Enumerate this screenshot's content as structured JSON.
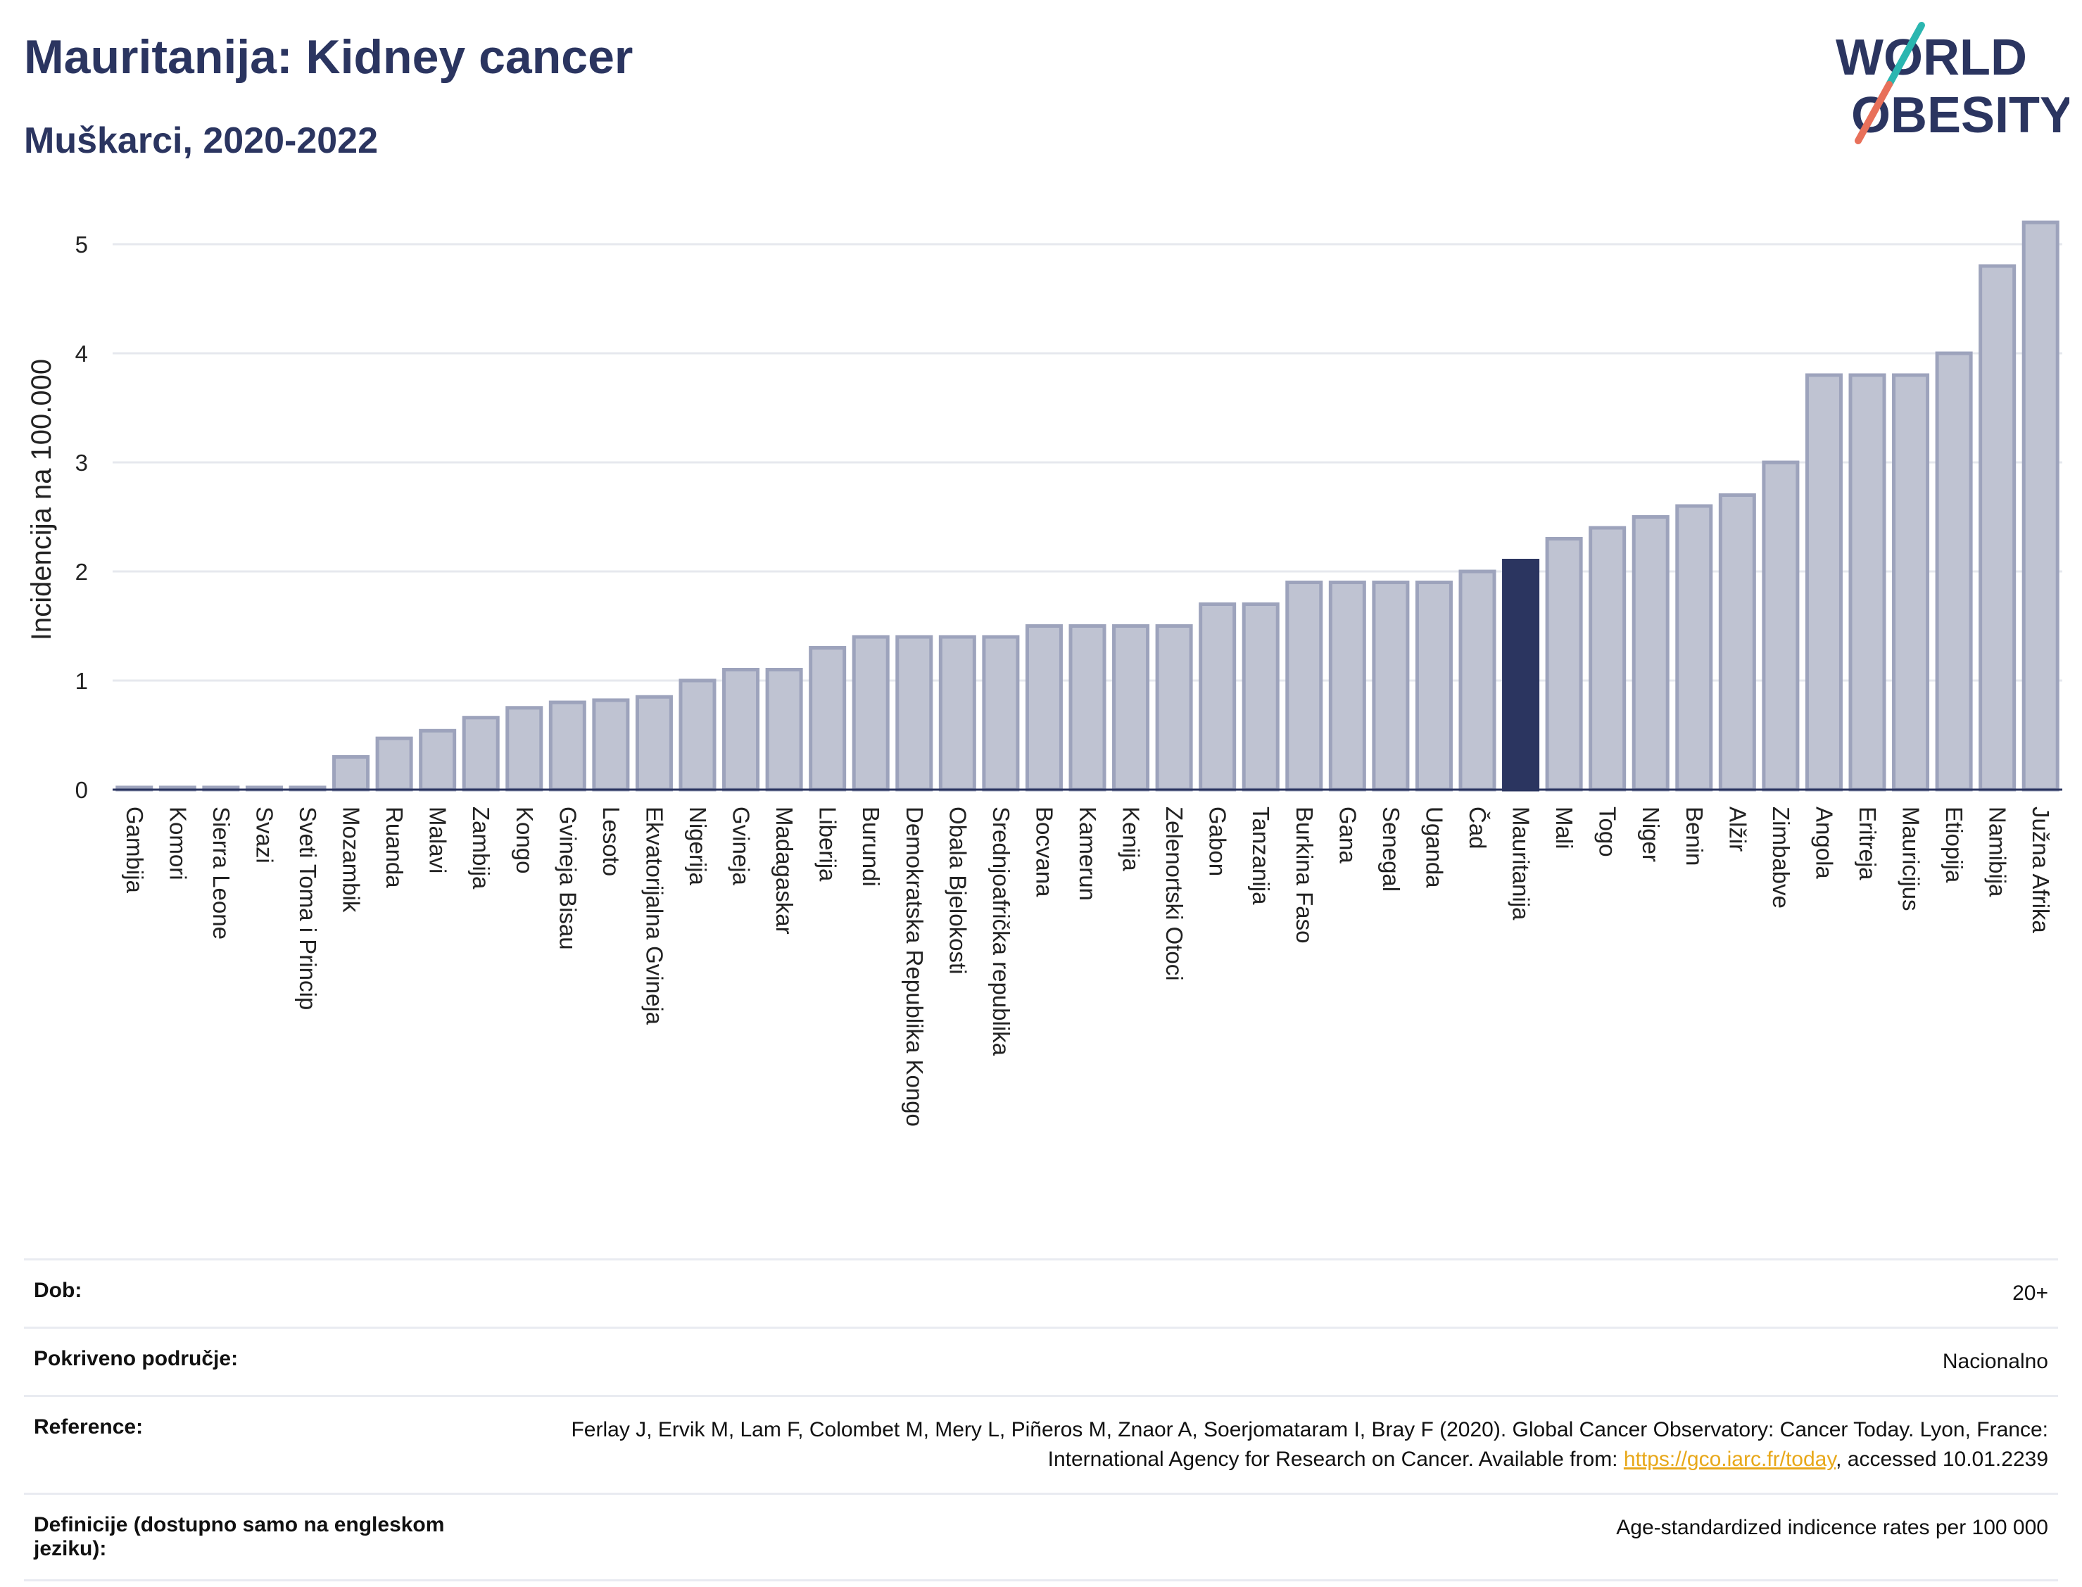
{
  "header": {
    "title": "Mauritanija: Kidney cancer",
    "subtitle": "Muškarci, 2020-2022"
  },
  "logo": {
    "line1": "WORLD",
    "line2": "OBESITY",
    "colors": {
      "text": "#2b3560",
      "slash_top": "#2bb6b0",
      "slash_bottom": "#e8705a"
    }
  },
  "chart_data": {
    "type": "bar",
    "title": "Mauritanija: Kidney cancer",
    "subtitle": "Muškarci, 2020-2022",
    "xlabel": "",
    "ylabel": "Incidencija na 100.000",
    "ylim": [
      0,
      5.4
    ],
    "yticks": [
      0,
      1,
      2,
      3,
      4,
      5
    ],
    "grid": true,
    "highlight": "Mauritanija",
    "colors": {
      "bar": "#bfc3d2",
      "bar_edge": "#9da3bc",
      "highlight": "#2b3560",
      "grid": "#e6e8ee"
    },
    "categories": [
      "Gambija",
      "Komori",
      "Sierra Leone",
      "Svazi",
      "Sveti Toma i Princip",
      "Mozambik",
      "Ruanda",
      "Malavi",
      "Zambija",
      "Kongo",
      "Gvineja Bisau",
      "Lesoto",
      "Ekvatorijalna Gvineja",
      "Nigerija",
      "Gvineja",
      "Madagaskar",
      "Liberija",
      "Burundi",
      "Demokratska Republika Kongo",
      "Obala Bjelokosti",
      "Srednjoafrička republika",
      "Bocvana",
      "Kamerun",
      "Kenija",
      "Zelenortski Otoci",
      "Gabon",
      "Tanzanija",
      "Burkina Faso",
      "Gana",
      "Senegal",
      "Uganda",
      "Čad",
      "Mauritanija",
      "Mali",
      "Togo",
      "Niger",
      "Benin",
      "Alžir",
      "Zimbabve",
      "Angola",
      "Eritreja",
      "Mauricijus",
      "Etiopija",
      "Namibija",
      "Južna Afrika"
    ],
    "values": [
      0.02,
      0.02,
      0.02,
      0.02,
      0.02,
      0.3,
      0.47,
      0.54,
      0.66,
      0.75,
      0.8,
      0.82,
      0.85,
      1.0,
      1.1,
      1.1,
      1.3,
      1.4,
      1.4,
      1.4,
      1.4,
      1.5,
      1.5,
      1.5,
      1.5,
      1.7,
      1.7,
      1.9,
      1.9,
      1.9,
      1.9,
      2.0,
      2.1,
      2.3,
      2.4,
      2.5,
      2.6,
      2.7,
      3.0,
      3.8,
      3.8,
      3.8,
      4.0,
      4.8,
      5.2
    ]
  },
  "meta": {
    "rows": [
      {
        "key": "Dob:",
        "value": "20+"
      },
      {
        "key": "Pokriveno područje:",
        "value": "Nacionalno"
      },
      {
        "key": "Reference:",
        "value": "Ferlay J, Ervik M, Lam F, Colombet M, Mery L, Piñeros M, Znaor A, Soerjomataram I, Bray F (2020). Global Cancer Observatory: Cancer Today. Lyon, France: International Agency for Research on Cancer. Available from: ",
        "link": "https://gco.iarc.fr/today",
        "suffix": ", accessed 10.01.2239"
      },
      {
        "key": "Definicije (dostupno samo na engleskom jeziku):",
        "value": "Age-standardized indicence rates per 100 000"
      }
    ]
  }
}
